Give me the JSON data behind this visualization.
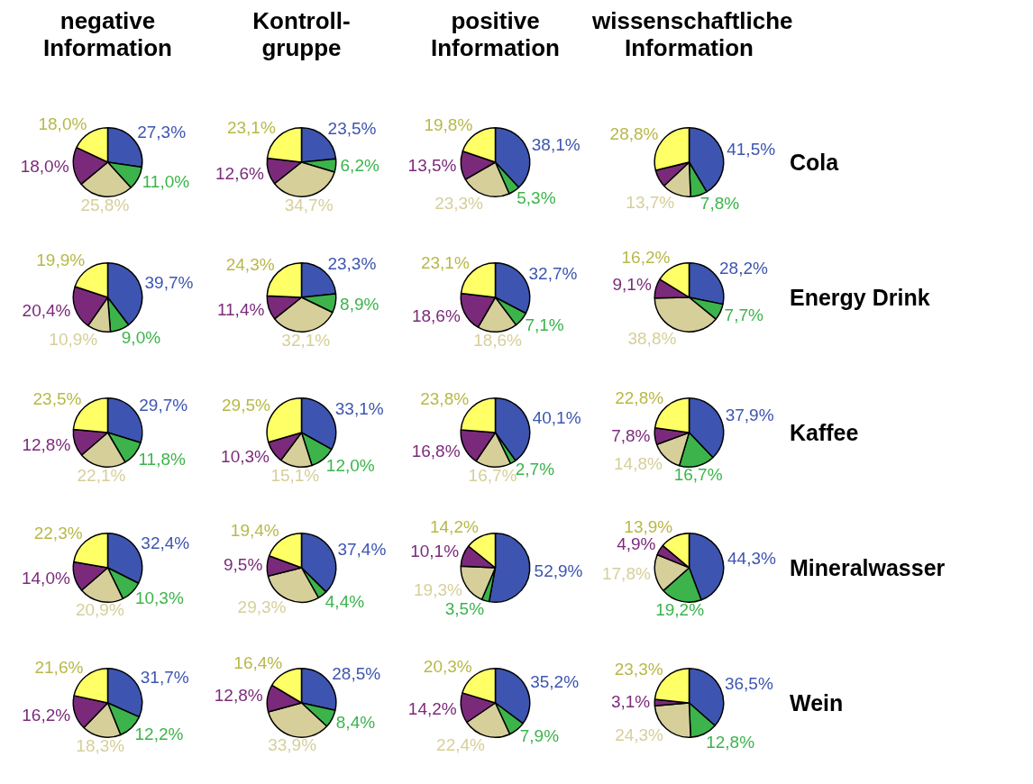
{
  "chart_data": [
    {
      "type": "pie",
      "title": "negative Information",
      "categories": [
        null,
        null,
        null,
        null,
        null
      ],
      "colors": [
        "#3d55b0",
        "#3cb44b",
        "#d6cf9a",
        "#7b2a7b",
        "#ffff66"
      ],
      "values": [
        27.3,
        11.0,
        25.8,
        18.0,
        18.0
      ],
      "value_labels": [
        "27,3%",
        "11,0%",
        "25,8%",
        "18,0%",
        "18,0%"
      ]
    },
    {
      "type": "pie",
      "title": "Kontroll-\ngruppe",
      "categories": [
        null,
        null,
        null,
        null,
        null
      ],
      "colors": [
        "#3d55b0",
        "#3cb44b",
        "#d6cf9a",
        "#7b2a7b",
        "#ffff66"
      ],
      "values": [
        23.5,
        6.2,
        34.7,
        12.6,
        23.1
      ],
      "value_labels": [
        "23,5%",
        "6,2%",
        "34,7%",
        "12,6%",
        "23,1%"
      ]
    },
    {
      "type": "pie",
      "title": "positive Information",
      "categories": [
        null,
        null,
        null,
        null,
        null
      ],
      "colors": [
        "#3d55b0",
        "#3cb44b",
        "#d6cf9a",
        "#7b2a7b",
        "#ffff66"
      ],
      "values": [
        38.1,
        5.3,
        23.3,
        13.5,
        19.8
      ],
      "value_labels": [
        "38,1%",
        "5,3%",
        "23,3%",
        "13,5%",
        "19,8%"
      ]
    },
    {
      "type": "pie",
      "title": "wissenschaftliche Information",
      "annotations": [
        "Cola"
      ],
      "categories": [
        null,
        null,
        null,
        null,
        null
      ],
      "colors": [
        "#3d55b0",
        "#3cb44b",
        "#d6cf9a",
        "#7b2a7b",
        "#ffff66"
      ],
      "values": [
        41.5,
        7.8,
        13.7,
        8.2,
        28.8
      ],
      "value_labels": [
        "41,5%",
        "7,8%",
        "13,7%",
        null,
        "28,8%"
      ]
    },
    {
      "type": "pie",
      "categories": [
        null,
        null,
        null,
        null,
        null
      ],
      "colors": [
        "#3d55b0",
        "#3cb44b",
        "#d6cf9a",
        "#7b2a7b",
        "#ffff66"
      ],
      "values": [
        39.7,
        9.0,
        10.9,
        20.4,
        19.9
      ],
      "value_labels": [
        "39,7%",
        "9,0%",
        "10,9%",
        "20,4%",
        "19,9%"
      ]
    },
    {
      "type": "pie",
      "categories": [
        null,
        null,
        null,
        null,
        null
      ],
      "colors": [
        "#3d55b0",
        "#3cb44b",
        "#d6cf9a",
        "#7b2a7b",
        "#ffff66"
      ],
      "values": [
        23.3,
        8.9,
        32.1,
        11.4,
        24.3
      ],
      "value_labels": [
        "23,3%",
        "8,9%",
        "32,1%",
        "11,4%",
        "24,3%"
      ]
    },
    {
      "type": "pie",
      "categories": [
        null,
        null,
        null,
        null,
        null
      ],
      "colors": [
        "#3d55b0",
        "#3cb44b",
        "#d6cf9a",
        "#7b2a7b",
        "#ffff66"
      ],
      "values": [
        32.7,
        7.1,
        18.6,
        18.6,
        23.1
      ],
      "value_labels": [
        "32,7%",
        "7,1%",
        "18,6%",
        "18,6%",
        "23,1%"
      ]
    },
    {
      "type": "pie",
      "annotations": [
        "Energy Drink"
      ],
      "categories": [
        null,
        null,
        null,
        null,
        null
      ],
      "colors": [
        "#3d55b0",
        "#3cb44b",
        "#d6cf9a",
        "#7b2a7b",
        "#ffff66"
      ],
      "values": [
        28.2,
        7.7,
        38.8,
        9.1,
        16.2
      ],
      "value_labels": [
        "28,2%",
        "7,7%",
        "38,8%",
        "9,1%",
        "16,2%"
      ]
    },
    {
      "type": "pie",
      "categories": [
        null,
        null,
        null,
        null,
        null
      ],
      "colors": [
        "#3d55b0",
        "#3cb44b",
        "#d6cf9a",
        "#7b2a7b",
        "#ffff66"
      ],
      "values": [
        29.7,
        11.8,
        22.1,
        12.8,
        23.5
      ],
      "value_labels": [
        "29,7%",
        "11,8%",
        "22,1%",
        "12,8%",
        "23,5%"
      ]
    },
    {
      "type": "pie",
      "categories": [
        null,
        null,
        null,
        null,
        null
      ],
      "colors": [
        "#3d55b0",
        "#3cb44b",
        "#d6cf9a",
        "#7b2a7b",
        "#ffff66"
      ],
      "values": [
        33.1,
        12.0,
        15.1,
        10.3,
        29.5
      ],
      "value_labels": [
        "33,1%",
        "12,0%",
        "15,1%",
        "10,3%",
        "29,5%"
      ]
    },
    {
      "type": "pie",
      "categories": [
        null,
        null,
        null,
        null,
        null
      ],
      "colors": [
        "#3d55b0",
        "#3cb44b",
        "#d6cf9a",
        "#7b2a7b",
        "#ffff66"
      ],
      "values": [
        40.1,
        2.7,
        16.7,
        16.8,
        23.8
      ],
      "value_labels": [
        "40,1%",
        "2,7%",
        "16,7%",
        "16,8%",
        "23,8%"
      ]
    },
    {
      "type": "pie",
      "annotations": [
        "Kaffee"
      ],
      "categories": [
        null,
        null,
        null,
        null,
        null
      ],
      "colors": [
        "#3d55b0",
        "#3cb44b",
        "#d6cf9a",
        "#7b2a7b",
        "#ffff66"
      ],
      "values": [
        37.9,
        16.7,
        14.8,
        7.8,
        22.8
      ],
      "value_labels": [
        "37,9%",
        "16,7%",
        "14,8%",
        "7,8%",
        "22,8%"
      ]
    },
    {
      "type": "pie",
      "categories": [
        null,
        null,
        null,
        null,
        null
      ],
      "colors": [
        "#3d55b0",
        "#3cb44b",
        "#d6cf9a",
        "#7b2a7b",
        "#ffff66"
      ],
      "values": [
        32.4,
        10.3,
        20.9,
        14.0,
        22.3
      ],
      "value_labels": [
        "32,4%",
        "10,3%",
        "20,9%",
        "14,0%",
        "22,3%"
      ]
    },
    {
      "type": "pie",
      "categories": [
        null,
        null,
        null,
        null,
        null
      ],
      "colors": [
        "#3d55b0",
        "#3cb44b",
        "#d6cf9a",
        "#7b2a7b",
        "#ffff66"
      ],
      "values": [
        37.4,
        4.4,
        29.3,
        9.5,
        19.4
      ],
      "value_labels": [
        "37,4%",
        "4,4%",
        "29,3%",
        "9,5%",
        "19,4%"
      ]
    },
    {
      "type": "pie",
      "categories": [
        null,
        null,
        null,
        null,
        null
      ],
      "colors": [
        "#3d55b0",
        "#3cb44b",
        "#d6cf9a",
        "#7b2a7b",
        "#ffff66"
      ],
      "values": [
        52.9,
        3.5,
        19.3,
        10.1,
        14.2
      ],
      "value_labels": [
        "52,9%",
        "3,5%",
        "19,3%",
        "10,1%",
        "14,2%"
      ]
    },
    {
      "type": "pie",
      "annotations": [
        "Mineralwasser"
      ],
      "categories": [
        null,
        null,
        null,
        null,
        null
      ],
      "colors": [
        "#3d55b0",
        "#3cb44b",
        "#d6cf9a",
        "#7b2a7b",
        "#ffff66"
      ],
      "values": [
        44.3,
        19.2,
        17.8,
        4.9,
        13.9
      ],
      "value_labels": [
        "44,3%",
        "19,2%",
        "17,8%",
        "4,9%",
        "13,9%"
      ]
    },
    {
      "type": "pie",
      "categories": [
        null,
        null,
        null,
        null,
        null
      ],
      "colors": [
        "#3d55b0",
        "#3cb44b",
        "#d6cf9a",
        "#7b2a7b",
        "#ffff66"
      ],
      "values": [
        31.7,
        12.2,
        18.3,
        16.2,
        21.6
      ],
      "value_labels": [
        "31,7%",
        "12,2%",
        "18,3%",
        "16,2%",
        "21,6%"
      ]
    },
    {
      "type": "pie",
      "categories": [
        null,
        null,
        null,
        null,
        null
      ],
      "colors": [
        "#3d55b0",
        "#3cb44b",
        "#d6cf9a",
        "#7b2a7b",
        "#ffff66"
      ],
      "values": [
        28.5,
        8.4,
        33.9,
        12.8,
        16.4
      ],
      "value_labels": [
        "28,5%",
        "8,4%",
        "33,9%",
        "12,8%",
        "16,4%"
      ]
    },
    {
      "type": "pie",
      "categories": [
        null,
        null,
        null,
        null,
        null
      ],
      "colors": [
        "#3d55b0",
        "#3cb44b",
        "#d6cf9a",
        "#7b2a7b",
        "#ffff66"
      ],
      "values": [
        35.2,
        7.9,
        22.4,
        14.2,
        20.3
      ],
      "value_labels": [
        "35,2%",
        "7,9%",
        "22,4%",
        "14,2%",
        "20,3%"
      ]
    },
    {
      "type": "pie",
      "annotations": [
        "Wein"
      ],
      "categories": [
        null,
        null,
        null,
        null,
        null
      ],
      "colors": [
        "#3d55b0",
        "#3cb44b",
        "#d6cf9a",
        "#7b2a7b",
        "#ffff66"
      ],
      "values": [
        36.5,
        12.8,
        24.3,
        3.1,
        23.3
      ],
      "value_labels": [
        "36,5%",
        "12,8%",
        "24,3%",
        "3,1%",
        "23,3%"
      ]
    }
  ]
}
